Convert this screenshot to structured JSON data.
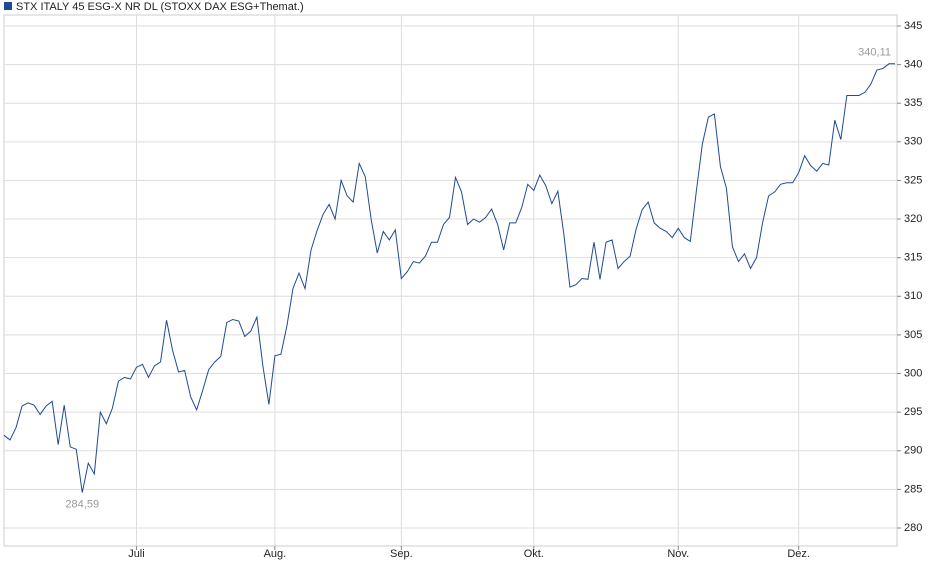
{
  "chart_data": {
    "type": "line",
    "categories": [
      null,
      null,
      null,
      null,
      null,
      null,
      null,
      null,
      null,
      null,
      null,
      null,
      null,
      null,
      null,
      null,
      null,
      null,
      null,
      null,
      null,
      null,
      "Juli",
      null,
      null,
      null,
      null,
      null,
      null,
      null,
      null,
      null,
      null,
      null,
      null,
      null,
      null,
      null,
      null,
      null,
      null,
      null,
      null,
      null,
      null,
      "Aug.",
      null,
      null,
      null,
      null,
      null,
      null,
      null,
      null,
      null,
      null,
      null,
      null,
      null,
      null,
      null,
      null,
      null,
      null,
      null,
      null,
      "Sep.",
      null,
      null,
      null,
      null,
      null,
      null,
      null,
      null,
      null,
      null,
      null,
      null,
      null,
      null,
      null,
      null,
      null,
      null,
      null,
      null,
      null,
      "Okt.",
      null,
      null,
      null,
      null,
      null,
      null,
      null,
      null,
      null,
      null,
      null,
      null,
      null,
      null,
      null,
      null,
      null,
      null,
      null,
      null,
      null,
      null,
      null,
      "Nov.",
      null,
      null,
      null,
      null,
      null,
      null,
      null,
      null,
      null,
      null,
      null,
      null,
      null,
      null,
      null,
      null,
      null,
      null,
      null,
      "Dez.",
      null,
      null,
      null,
      null,
      null,
      null,
      null,
      null,
      null,
      null,
      null,
      null,
      null,
      null,
      null,
      null
    ],
    "series": [
      {
        "name": "STX ITALY 45 ESG-X NR DL (STOXX DAX ESG+Themat.)",
        "color": "#1f4a94",
        "values": [
          292.0,
          291.4,
          293.0,
          295.8,
          296.2,
          295.9,
          294.7,
          295.8,
          296.4,
          290.8,
          295.9,
          290.5,
          290.2,
          284.59,
          288.4,
          287.0,
          295.0,
          293.5,
          295.5,
          299.0,
          299.5,
          299.3,
          300.8,
          301.2,
          299.5,
          301.0,
          301.5,
          306.9,
          303.0,
          300.2,
          300.4,
          297.0,
          295.3,
          297.8,
          300.5,
          301.5,
          302.2,
          306.6,
          307.0,
          306.8,
          304.8,
          305.5,
          307.3,
          301.0,
          296.0,
          302.3,
          302.5,
          306.2,
          311.0,
          313.0,
          311.0,
          316.0,
          318.5,
          320.6,
          321.9,
          320.0,
          325.0,
          323.0,
          322.2,
          327.2,
          325.5,
          319.9,
          315.6,
          318.4,
          317.3,
          318.6,
          312.3,
          313.2,
          314.5,
          314.3,
          315.2,
          317.0,
          317.0,
          319.3,
          320.2,
          325.4,
          323.5,
          319.3,
          320.0,
          319.6,
          320.2,
          321.3,
          319.3,
          316.0,
          319.5,
          319.5,
          321.5,
          324.5,
          323.7,
          325.7,
          324.3,
          322.0,
          323.6,
          318.0,
          311.2,
          311.5,
          312.3,
          312.2,
          317.0,
          312.2,
          317.0,
          317.3,
          313.6,
          314.5,
          315.2,
          318.7,
          321.2,
          322.2,
          319.5,
          318.8,
          318.4,
          317.6,
          318.8,
          317.6,
          317.1,
          323.6,
          329.7,
          333.2,
          333.6,
          326.8,
          324.0,
          316.4,
          314.5,
          315.5,
          313.6,
          315.0,
          319.5,
          323.0,
          323.5,
          324.5,
          324.7,
          324.7,
          326.0,
          328.2,
          326.9,
          326.2,
          327.2,
          327.0,
          332.8,
          330.3,
          336.0,
          336.0,
          336.0,
          336.4,
          337.5,
          339.3,
          339.5,
          340.1,
          340.11
        ],
        "value_labels": [
          null,
          null,
          null,
          null,
          null,
          null,
          null,
          null,
          null,
          null,
          null,
          null,
          null,
          "284,59",
          null,
          null,
          null,
          null,
          null,
          null,
          null,
          null,
          null,
          null,
          null,
          null,
          null,
          null,
          null,
          null,
          null,
          null,
          null,
          null,
          null,
          null,
          null,
          null,
          null,
          null,
          null,
          null,
          null,
          null,
          null,
          null,
          null,
          null,
          null,
          null,
          null,
          null,
          null,
          null,
          null,
          null,
          null,
          null,
          null,
          null,
          null,
          null,
          null,
          null,
          null,
          null,
          null,
          null,
          null,
          null,
          null,
          null,
          null,
          null,
          null,
          null,
          null,
          null,
          null,
          null,
          null,
          null,
          null,
          null,
          null,
          null,
          null,
          null,
          null,
          null,
          null,
          null,
          null,
          null,
          null,
          null,
          null,
          null,
          null,
          null,
          null,
          null,
          null,
          null,
          null,
          null,
          null,
          null,
          null,
          null,
          null,
          null,
          null,
          null,
          null,
          null,
          null,
          null,
          null,
          null,
          null,
          null,
          null,
          null,
          null,
          null,
          null,
          null,
          null,
          null,
          null,
          null,
          null,
          null,
          null,
          null,
          null,
          null,
          null,
          null,
          null,
          null,
          null,
          null,
          null,
          null,
          null,
          null,
          "340,11"
        ]
      }
    ],
    "ylim": [
      277.67,
      346.42
    ],
    "yticks": [
      280,
      285,
      290,
      295,
      300,
      305,
      310,
      315,
      320,
      325,
      330,
      335,
      340,
      345
    ],
    "grid": true
  }
}
